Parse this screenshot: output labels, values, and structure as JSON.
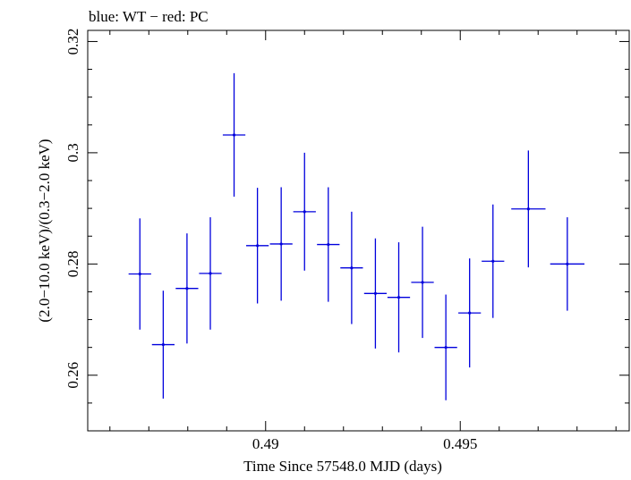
{
  "chart_data": {
    "type": "scatter",
    "title": "blue: WT − red: PC",
    "xlabel": "Time Since 57548.0 MJD (days)",
    "ylabel": "(2.0−10.0 keV)/(0.3−2.0 keV)",
    "xlim": [
      0.48543,
      0.49934
    ],
    "ylim": [
      0.25,
      0.322
    ],
    "x_ticks": [
      {
        "value": 0.49,
        "label": "0.49"
      },
      {
        "value": 0.495,
        "label": "0.495"
      }
    ],
    "y_ticks": [
      {
        "value": 0.26,
        "label": "0.26"
      },
      {
        "value": 0.28,
        "label": "0.28"
      },
      {
        "value": 0.3,
        "label": "0.3"
      },
      {
        "value": 0.32,
        "label": "0.32"
      }
    ],
    "grid": false,
    "series": [
      {
        "name": "WT",
        "color": "#0000dd",
        "points": [
          {
            "x": 0.48677,
            "xerr": 0.00029,
            "y": 0.2782,
            "yerr": 0.01
          },
          {
            "x": 0.48737,
            "xerr": 0.00029,
            "y": 0.2655,
            "yerr": 0.0097
          },
          {
            "x": 0.48798,
            "xerr": 0.00029,
            "y": 0.2756,
            "yerr": 0.0099
          },
          {
            "x": 0.48858,
            "xerr": 0.00029,
            "y": 0.2783,
            "yerr": 0.0101
          },
          {
            "x": 0.48919,
            "xerr": 0.00029,
            "y": 0.3032,
            "yerr": 0.0111
          },
          {
            "x": 0.48979,
            "xerr": 0.00029,
            "y": 0.2833,
            "yerr": 0.0104
          },
          {
            "x": 0.4904,
            "xerr": 0.00029,
            "y": 0.2836,
            "yerr": 0.0102
          },
          {
            "x": 0.491,
            "xerr": 0.00029,
            "y": 0.2894,
            "yerr": 0.0106
          },
          {
            "x": 0.49161,
            "xerr": 0.00029,
            "y": 0.2835,
            "yerr": 0.0103
          },
          {
            "x": 0.49221,
            "xerr": 0.00029,
            "y": 0.2793,
            "yerr": 0.0101
          },
          {
            "x": 0.49282,
            "xerr": 0.00029,
            "y": 0.2747,
            "yerr": 0.0099
          },
          {
            "x": 0.49342,
            "xerr": 0.00029,
            "y": 0.274,
            "yerr": 0.0099
          },
          {
            "x": 0.49403,
            "xerr": 0.00029,
            "y": 0.2767,
            "yerr": 0.01
          },
          {
            "x": 0.49463,
            "xerr": 0.00029,
            "y": 0.265,
            "yerr": 0.0095
          },
          {
            "x": 0.49524,
            "xerr": 0.00029,
            "y": 0.2712,
            "yerr": 0.0098
          },
          {
            "x": 0.49584,
            "xerr": 0.00029,
            "y": 0.2805,
            "yerr": 0.0102
          },
          {
            "x": 0.49675,
            "xerr": 0.00044,
            "y": 0.2899,
            "yerr": 0.0105
          },
          {
            "x": 0.49775,
            "xerr": 0.00044,
            "y": 0.28,
            "yerr": 0.0084
          }
        ]
      }
    ]
  }
}
